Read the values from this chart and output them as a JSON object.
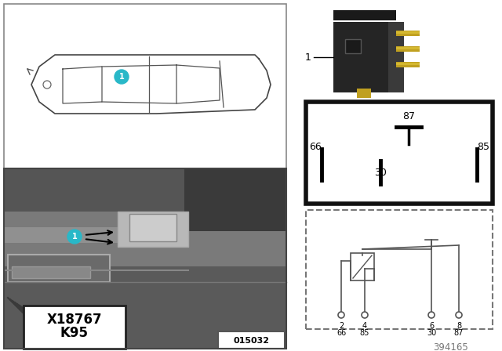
{
  "bg_color": "#ffffff",
  "cyan_color": "#29b8c8",
  "doc_id": "394165",
  "photo_id": "015032",
  "k95_text": "K95",
  "x18767_text": "X18767"
}
